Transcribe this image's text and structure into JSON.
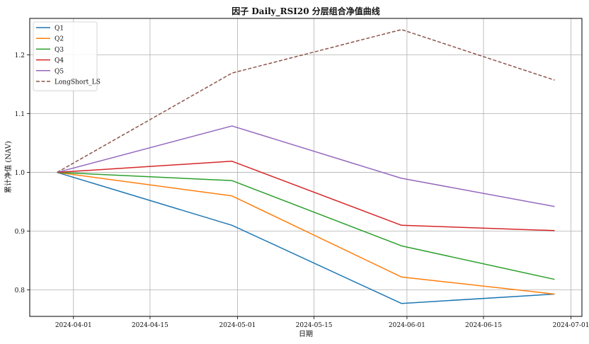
{
  "chart_data": {
    "type": "line",
    "title": "因子 Daily_RSI20 分层组合净值曲线",
    "xlabel": "日期",
    "ylabel": "累计净值 (NAV)",
    "x": [
      "2024-03-29",
      "2024-04-30",
      "2024-05-31",
      "2024-06-28"
    ],
    "xlim": [
      "2024-03-24",
      "2024-07-03"
    ],
    "ylim": [
      0.755,
      1.262
    ],
    "xticks": [
      "2024-04-01",
      "2024-04-15",
      "2024-05-01",
      "2024-05-15",
      "2024-06-01",
      "2024-06-15",
      "2024-07-01"
    ],
    "yticks": [
      "0.8",
      "0.9",
      "1.0",
      "1.1",
      "1.2"
    ],
    "grid": true,
    "legend_position": "top-left",
    "series": [
      {
        "name": "Q1",
        "color": "#1f77b4",
        "dash": "solid",
        "values": [
          1.0,
          0.91,
          0.777,
          0.793
        ]
      },
      {
        "name": "Q2",
        "color": "#ff7f0e",
        "dash": "solid",
        "values": [
          1.0,
          0.96,
          0.822,
          0.793
        ]
      },
      {
        "name": "Q3",
        "color": "#2ca02c",
        "dash": "solid",
        "values": [
          1.0,
          0.986,
          0.875,
          0.818
        ]
      },
      {
        "name": "Q4",
        "color": "#d62728",
        "dash": "solid",
        "values": [
          1.0,
          1.019,
          0.91,
          0.901
        ]
      },
      {
        "name": "Q5",
        "color": "#9467bd",
        "dash": "solid",
        "values": [
          1.0,
          1.079,
          0.99,
          0.942
        ]
      },
      {
        "name": "LongShort_LS",
        "color": "#8c564b",
        "dash": "dashed",
        "values": [
          1.0,
          1.169,
          1.243,
          1.157
        ]
      }
    ]
  }
}
